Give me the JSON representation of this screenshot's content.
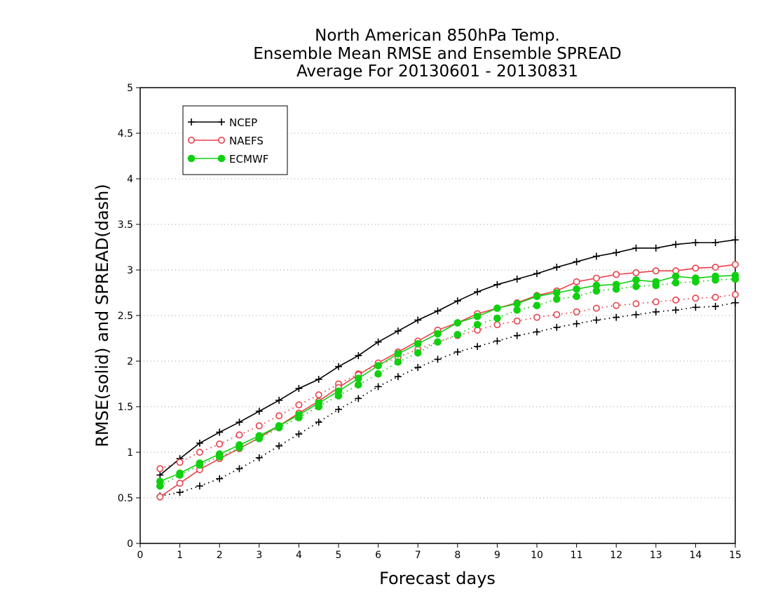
{
  "chart_data": {
    "type": "line",
    "title": [
      "North American 850hPa Temp.",
      "Ensemble Mean RMSE and Ensemble SPREAD",
      "Average For 20130601 - 20130831"
    ],
    "xlabel": "Forecast days",
    "ylabel": "RMSE(solid) and SPREAD(dash)",
    "xlim": [
      0,
      15
    ],
    "ylim": [
      0,
      5
    ],
    "xticks": [
      "0",
      "1",
      "2",
      "3",
      "4",
      "5",
      "6",
      "7",
      "8",
      "9",
      "10",
      "11",
      "12",
      "13",
      "14",
      "15"
    ],
    "yticks": [
      "0",
      "0.5",
      "1",
      "1.5",
      "2",
      "2.5",
      "3",
      "3.5",
      "4",
      "4.5",
      "5"
    ],
    "grid": "horizontal dotted",
    "legend_position": "top-left",
    "x": [
      0.5,
      1,
      1.5,
      2,
      2.5,
      3,
      3.5,
      4,
      4.5,
      5,
      5.5,
      6,
      6.5,
      7,
      7.5,
      8,
      8.5,
      9,
      9.5,
      10,
      10.5,
      11,
      11.5,
      12,
      12.5,
      13,
      13.5,
      14,
      14.5,
      15
    ],
    "series": [
      {
        "name": "NCEP",
        "color": "#000000",
        "marker": "plus",
        "rmse": [
          0.75,
          0.93,
          1.1,
          1.22,
          1.33,
          1.45,
          1.57,
          1.7,
          1.8,
          1.94,
          2.06,
          2.21,
          2.33,
          2.45,
          2.55,
          2.66,
          2.76,
          2.84,
          2.9,
          2.96,
          3.03,
          3.09,
          3.15,
          3.19,
          3.24,
          3.24,
          3.28,
          3.3,
          3.3,
          3.33
        ],
        "spread": [
          0.52,
          0.56,
          0.63,
          0.71,
          0.82,
          0.94,
          1.07,
          1.2,
          1.33,
          1.47,
          1.59,
          1.72,
          1.83,
          1.93,
          2.02,
          2.1,
          2.16,
          2.22,
          2.28,
          2.32,
          2.37,
          2.41,
          2.45,
          2.48,
          2.51,
          2.54,
          2.56,
          2.59,
          2.6,
          2.64
        ]
      },
      {
        "name": "NAEFS",
        "color": "#e8404a",
        "marker": "open-circle",
        "rmse": [
          0.51,
          0.66,
          0.81,
          0.93,
          1.04,
          1.16,
          1.29,
          1.43,
          1.56,
          1.71,
          1.85,
          1.98,
          2.1,
          2.22,
          2.34,
          2.42,
          2.52,
          2.58,
          2.64,
          2.72,
          2.77,
          2.87,
          2.91,
          2.95,
          2.97,
          2.99,
          2.99,
          3.02,
          3.03,
          3.06
        ],
        "spread": [
          0.82,
          0.89,
          1.0,
          1.09,
          1.19,
          1.29,
          1.4,
          1.52,
          1.63,
          1.75,
          1.86,
          1.96,
          2.04,
          2.13,
          2.21,
          2.28,
          2.34,
          2.4,
          2.44,
          2.48,
          2.51,
          2.54,
          2.58,
          2.61,
          2.63,
          2.65,
          2.67,
          2.69,
          2.7,
          2.73
        ]
      },
      {
        "name": "ECMWF",
        "color": "#10d010",
        "marker": "filled-circle",
        "rmse": [
          0.68,
          0.77,
          0.88,
          0.98,
          1.08,
          1.18,
          1.29,
          1.41,
          1.54,
          1.67,
          1.81,
          1.95,
          2.08,
          2.19,
          2.3,
          2.42,
          2.49,
          2.58,
          2.63,
          2.71,
          2.75,
          2.79,
          2.83,
          2.84,
          2.89,
          2.87,
          2.93,
          2.91,
          2.93,
          2.94
        ],
        "spread": [
          0.63,
          0.75,
          0.86,
          0.95,
          1.05,
          1.15,
          1.27,
          1.38,
          1.5,
          1.62,
          1.74,
          1.86,
          1.99,
          2.09,
          2.21,
          2.29,
          2.4,
          2.47,
          2.56,
          2.61,
          2.68,
          2.71,
          2.77,
          2.79,
          2.82,
          2.83,
          2.86,
          2.87,
          2.89,
          2.9
        ]
      }
    ]
  }
}
